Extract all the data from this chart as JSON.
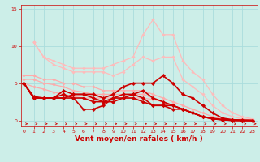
{
  "background_color": "#cceee8",
  "grid_color": "#aadddd",
  "xlabel": "Vent moyen/en rafales ( km/h )",
  "xlabel_color": "#cc0000",
  "xlabel_fontsize": 6.5,
  "tick_color": "#cc0000",
  "yticks": [
    0,
    5,
    10,
    15
  ],
  "xticks": [
    0,
    1,
    2,
    3,
    4,
    5,
    6,
    7,
    8,
    9,
    10,
    11,
    12,
    13,
    14,
    15,
    16,
    17,
    18,
    19,
    20,
    21,
    22,
    23
  ],
  "xlim": [
    -0.3,
    23.5
  ],
  "ylim": [
    -0.8,
    15.5
  ],
  "lines": [
    {
      "x": [
        0,
        1,
        2,
        3,
        4,
        5,
        6,
        7,
        8,
        9,
        10,
        11,
        12,
        13,
        14,
        15,
        16,
        17,
        18,
        19,
        20,
        21,
        22,
        23
      ],
      "y": [
        6.0,
        6.0,
        5.5,
        5.5,
        5.0,
        5.0,
        4.5,
        4.5,
        4.0,
        4.0,
        4.0,
        4.0,
        4.0,
        3.5,
        3.0,
        2.5,
        2.0,
        1.5,
        1.0,
        0.5,
        0.2,
        0.1,
        0.05,
        0.0
      ],
      "color": "#ffaaaa",
      "lw": 0.9,
      "marker": "D",
      "ms": 1.8
    },
    {
      "x": [
        0,
        1,
        2,
        3,
        4,
        5,
        6,
        7,
        8,
        9,
        10,
        11,
        12,
        13,
        14,
        15,
        16,
        17,
        18,
        19,
        20,
        21,
        22,
        23
      ],
      "y": [
        5.5,
        5.5,
        5.0,
        4.8,
        4.5,
        4.0,
        3.8,
        3.5,
        3.5,
        3.5,
        3.5,
        3.5,
        3.5,
        3.0,
        2.5,
        2.0,
        1.5,
        1.0,
        0.5,
        0.3,
        0.1,
        0.05,
        0.02,
        0.0
      ],
      "color": "#ffaaaa",
      "lw": 0.9,
      "marker": "D",
      "ms": 1.8
    },
    {
      "x": [
        0,
        1,
        2,
        3,
        4,
        5,
        6,
        7,
        8,
        9,
        10,
        11,
        12,
        13,
        14,
        15,
        16,
        17,
        18,
        19,
        20,
        21,
        22,
        23
      ],
      "y": [
        5.0,
        4.5,
        4.2,
        3.8,
        3.5,
        3.2,
        3.0,
        3.0,
        3.0,
        3.0,
        3.0,
        3.0,
        3.0,
        2.8,
        2.5,
        2.0,
        1.5,
        1.0,
        0.5,
        0.2,
        0.1,
        0.05,
        0.02,
        0.0
      ],
      "color": "#ffaaaa",
      "lw": 0.9,
      "marker": "D",
      "ms": 1.8
    },
    {
      "x": [
        1,
        2,
        3,
        4,
        5,
        6,
        7,
        8,
        9,
        10,
        11,
        12,
        13,
        14,
        15,
        16,
        17,
        18,
        19,
        20,
        21,
        22,
        23
      ],
      "y": [
        10.5,
        8.5,
        8.0,
        7.5,
        7.0,
        7.0,
        7.0,
        7.0,
        7.5,
        8.0,
        8.5,
        11.5,
        13.5,
        11.5,
        11.5,
        8.0,
        6.5,
        5.5,
        3.5,
        2.0,
        1.0,
        0.5,
        0.2
      ],
      "color": "#ffbbbb",
      "lw": 0.9,
      "marker": "D",
      "ms": 1.8
    },
    {
      "x": [
        1,
        2,
        3,
        4,
        5,
        6,
        7,
        8,
        9,
        10,
        11,
        12,
        13,
        14,
        15,
        16,
        17,
        18,
        19,
        20,
        21,
        22,
        23
      ],
      "y": [
        10.5,
        8.5,
        7.5,
        7.0,
        6.5,
        6.5,
        6.5,
        6.5,
        6.0,
        6.5,
        7.5,
        8.5,
        8.0,
        8.5,
        8.5,
        5.5,
        4.5,
        3.5,
        2.0,
        1.0,
        0.5,
        0.2,
        0.1
      ],
      "color": "#ffbbbb",
      "lw": 0.9,
      "marker": "D",
      "ms": 1.8
    },
    {
      "x": [
        0,
        1,
        2,
        3,
        4,
        5,
        6,
        7,
        8,
        9,
        10,
        11,
        12,
        13,
        14,
        15,
        16,
        17,
        18,
        19,
        20,
        21,
        22,
        23
      ],
      "y": [
        5.0,
        3.2,
        3.0,
        3.0,
        4.0,
        3.5,
        3.5,
        3.5,
        3.0,
        3.5,
        4.5,
        5.0,
        5.0,
        5.0,
        6.0,
        5.0,
        3.5,
        3.0,
        2.0,
        1.0,
        0.3,
        0.1,
        0.05,
        0.0
      ],
      "color": "#cc0000",
      "lw": 1.2,
      "marker": "D",
      "ms": 2.2
    },
    {
      "x": [
        0,
        1,
        2,
        3,
        4,
        5,
        6,
        7,
        8,
        9,
        10,
        11,
        12,
        13,
        14,
        15,
        16,
        17,
        18,
        19,
        20,
        21,
        22,
        23
      ],
      "y": [
        5.0,
        3.0,
        3.0,
        3.0,
        3.0,
        3.5,
        3.5,
        3.0,
        2.5,
        3.0,
        3.5,
        3.5,
        4.0,
        3.0,
        2.5,
        2.0,
        1.5,
        1.0,
        0.5,
        0.3,
        0.1,
        0.05,
        0.0,
        0.0
      ],
      "color": "#cc0000",
      "lw": 1.2,
      "marker": "D",
      "ms": 2.2
    },
    {
      "x": [
        0,
        1,
        2,
        3,
        4,
        5,
        6,
        7,
        8,
        9,
        10,
        11,
        12,
        13,
        14,
        15,
        16,
        17,
        18,
        19,
        20,
        21,
        22,
        23
      ],
      "y": [
        5.0,
        3.0,
        3.0,
        3.0,
        3.5,
        3.0,
        1.5,
        1.5,
        2.0,
        3.0,
        3.0,
        3.5,
        3.0,
        2.0,
        2.0,
        2.0,
        1.5,
        1.0,
        0.5,
        0.2,
        0.1,
        0.0,
        0.0,
        0.0
      ],
      "color": "#cc0000",
      "lw": 1.2,
      "marker": "D",
      "ms": 2.2
    },
    {
      "x": [
        0,
        1,
        2,
        3,
        4,
        5,
        6,
        7,
        8,
        9,
        10,
        11,
        12,
        13,
        14,
        15,
        16,
        17,
        18,
        19,
        20,
        21,
        22,
        23
      ],
      "y": [
        5.0,
        3.0,
        3.0,
        3.0,
        3.0,
        3.0,
        3.0,
        2.5,
        2.5,
        2.5,
        3.0,
        3.0,
        2.5,
        2.0,
        2.0,
        1.5,
        1.5,
        1.0,
        0.5,
        0.2,
        0.1,
        0.0,
        0.0,
        0.0
      ],
      "color": "#cc0000",
      "lw": 1.2,
      "marker": "D",
      "ms": 2.2
    }
  ]
}
